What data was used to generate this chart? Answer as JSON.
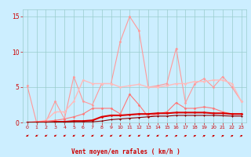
{
  "x": [
    0,
    1,
    2,
    3,
    4,
    5,
    6,
    7,
    8,
    9,
    10,
    11,
    12,
    13,
    14,
    15,
    16,
    17,
    18,
    19,
    20,
    21,
    22,
    23
  ],
  "series": [
    {
      "values": [
        5.2,
        0.0,
        0.1,
        3.0,
        0.5,
        6.5,
        3.0,
        2.5,
        5.5,
        5.5,
        11.5,
        15.0,
        13.0,
        5.0,
        5.2,
        5.5,
        10.5,
        2.8,
        5.5,
        6.2,
        5.0,
        6.5,
        5.0,
        3.0
      ],
      "color": "#ff9999",
      "lw": 0.8,
      "marker": "D",
      "ms": 1.5
    },
    {
      "values": [
        0.0,
        0.1,
        0.3,
        1.5,
        1.5,
        3.0,
        6.0,
        5.5,
        5.5,
        5.5,
        5.0,
        5.2,
        5.4,
        5.0,
        5.0,
        5.2,
        5.5,
        5.5,
        5.8,
        5.8,
        6.0,
        6.0,
        5.5,
        3.0
      ],
      "color": "#ffbbbb",
      "lw": 1.0,
      "marker": "D",
      "ms": 1.5
    },
    {
      "values": [
        0.0,
        0.1,
        0.2,
        0.3,
        0.5,
        0.8,
        1.2,
        2.0,
        2.0,
        2.0,
        1.2,
        4.0,
        2.5,
        0.8,
        1.2,
        1.5,
        2.8,
        2.0,
        2.0,
        2.2,
        2.0,
        1.5,
        1.2,
        1.2
      ],
      "color": "#ff7777",
      "lw": 0.8,
      "marker": "D",
      "ms": 1.5
    },
    {
      "values": [
        0.0,
        0.0,
        0.0,
        0.1,
        0.1,
        0.2,
        0.2,
        0.3,
        0.8,
        1.0,
        1.0,
        1.1,
        1.2,
        1.2,
        1.3,
        1.3,
        1.4,
        1.4,
        1.4,
        1.4,
        1.3,
        1.3,
        1.2,
        1.2
      ],
      "color": "#dd0000",
      "lw": 1.5,
      "marker": "D",
      "ms": 1.5
    },
    {
      "values": [
        0.0,
        0.0,
        0.0,
        0.05,
        0.05,
        0.1,
        0.1,
        0.1,
        0.2,
        0.4,
        0.5,
        0.6,
        0.7,
        0.8,
        0.9,
        0.9,
        1.0,
        1.0,
        1.0,
        1.0,
        1.0,
        0.95,
        0.9,
        0.9
      ],
      "color": "#880000",
      "lw": 0.8,
      "marker": "D",
      "ms": 1.0
    }
  ],
  "arrow_angles": [
    225,
    225,
    225,
    225,
    225,
    225,
    225,
    225,
    225,
    225,
    225,
    225,
    225,
    225,
    225,
    45,
    45,
    45,
    45,
    45,
    45,
    45,
    45,
    45
  ],
  "xlabel": "Vent moyen/en rafales ( km/h )",
  "xlim": [
    -0.5,
    23.5
  ],
  "ylim": [
    0,
    16
  ],
  "yticks": [
    0,
    5,
    10,
    15
  ],
  "xticks": [
    0,
    1,
    2,
    3,
    4,
    5,
    6,
    7,
    8,
    9,
    10,
    11,
    12,
    13,
    14,
    15,
    16,
    17,
    18,
    19,
    20,
    21,
    22,
    23
  ],
  "bg_color": "#cceeff",
  "grid_color": "#99cccc",
  "tick_color": "#cc0000",
  "label_color": "#cc0000"
}
